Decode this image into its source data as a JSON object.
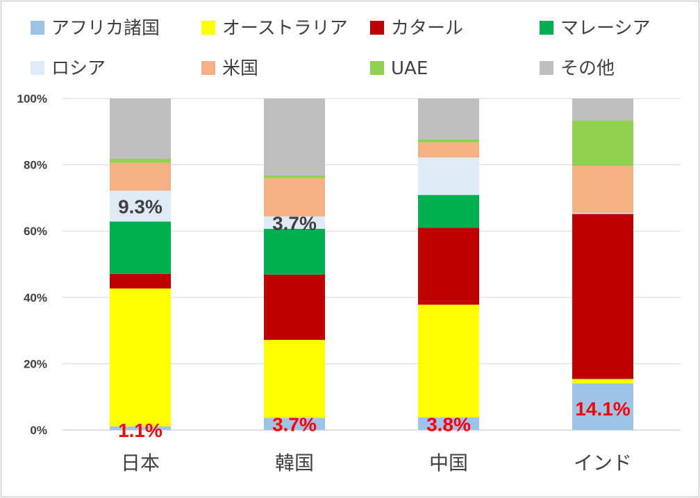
{
  "chart_data": {
    "type": "bar",
    "stacked": true,
    "categories": [
      "日本",
      "韓国",
      "中国",
      "インド"
    ],
    "ylim": [
      0,
      100
    ],
    "yticks": [
      "0%",
      "20%",
      "40%",
      "60%",
      "80%",
      "100%"
    ],
    "grid": true,
    "legend_position": "top",
    "series": [
      {
        "name": "アフリカ諸国",
        "color": "#9dc3e6",
        "values": [
          1.1,
          3.7,
          3.8,
          14.1
        ]
      },
      {
        "name": "オーストラリア",
        "color": "#ffff00",
        "values": [
          41.6,
          23.5,
          34.0,
          1.3
        ]
      },
      {
        "name": "カタール",
        "color": "#c00000",
        "values": [
          4.4,
          19.7,
          23.2,
          49.8
        ]
      },
      {
        "name": "マレーシア",
        "color": "#00b050",
        "values": [
          15.8,
          13.8,
          9.9,
          0.0
        ]
      },
      {
        "name": "ロシア",
        "color": "#deebf7",
        "values": [
          9.3,
          3.7,
          11.3,
          0.3
        ]
      },
      {
        "name": "米国",
        "color": "#f4b183",
        "values": [
          8.4,
          11.6,
          4.6,
          14.2
        ]
      },
      {
        "name": "UAE",
        "color": "#92d050",
        "values": [
          1.2,
          0.8,
          0.9,
          13.6
        ]
      },
      {
        "name": "その他",
        "color": "#bfbfbf",
        "values": [
          18.2,
          23.2,
          12.3,
          6.7
        ]
      }
    ],
    "annotations": [
      {
        "text": "9.3%",
        "category": 0,
        "y": 67.5,
        "color": "#404040"
      },
      {
        "text": "3.7%",
        "category": 1,
        "y": 62.5,
        "color": "#404040"
      },
      {
        "text": "1.1%",
        "category": 0,
        "y": 0.0,
        "color": "#ff0000"
      },
      {
        "text": "3.7%",
        "category": 1,
        "y": 1.8,
        "color": "#ff0000"
      },
      {
        "text": "3.8%",
        "category": 2,
        "y": 1.8,
        "color": "#ff0000"
      },
      {
        "text": "14.1%",
        "category": 3,
        "y": 6.5,
        "color": "#ff0000"
      }
    ]
  }
}
